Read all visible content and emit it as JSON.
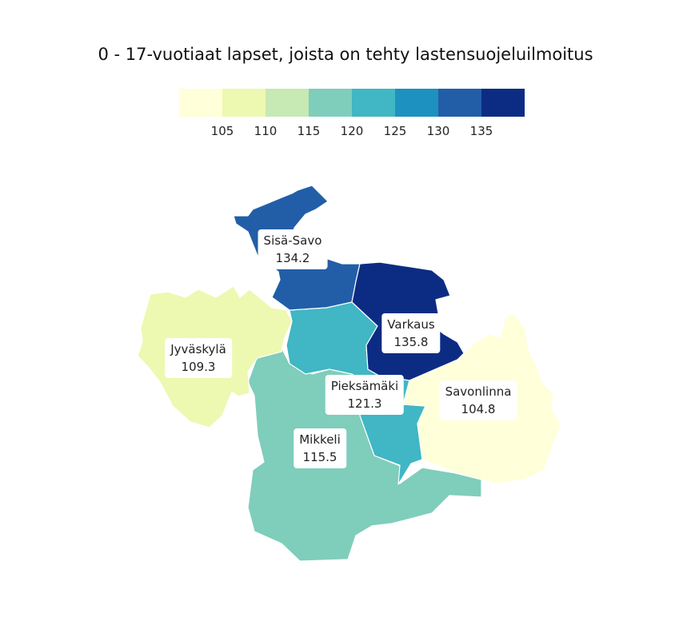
{
  "title": "0 - 17-vuotiaat lapset, joista on tehty lastensuojeluilmoitus",
  "legend": {
    "colors": [
      "#ffffd9",
      "#edf8b1",
      "#c7e9b4",
      "#7fcdbb",
      "#41b6c4",
      "#1d91c0",
      "#225ea8",
      "#0c2c84"
    ],
    "ticks": [
      "105",
      "110",
      "115",
      "120",
      "125",
      "130",
      "135"
    ]
  },
  "regions": [
    {
      "id": "sisa-savo",
      "name": "Sisä-Savo",
      "value": "134.2",
      "color": "#225ea8"
    },
    {
      "id": "varkaus",
      "name": "Varkaus",
      "value": "135.8",
      "color": "#0c2c84"
    },
    {
      "id": "jyvaskyla",
      "name": "Jyväskylä",
      "value": "109.3",
      "color": "#edf8b1"
    },
    {
      "id": "pieksamaki",
      "name": "Pieksämäki",
      "value": "121.3",
      "color": "#41b6c4"
    },
    {
      "id": "savonlinna",
      "name": "Savonlinna",
      "value": "104.8",
      "color": "#ffffd9"
    },
    {
      "id": "mikkeli",
      "name": "Mikkeli",
      "value": "115.5",
      "color": "#7fcdbb"
    }
  ]
}
